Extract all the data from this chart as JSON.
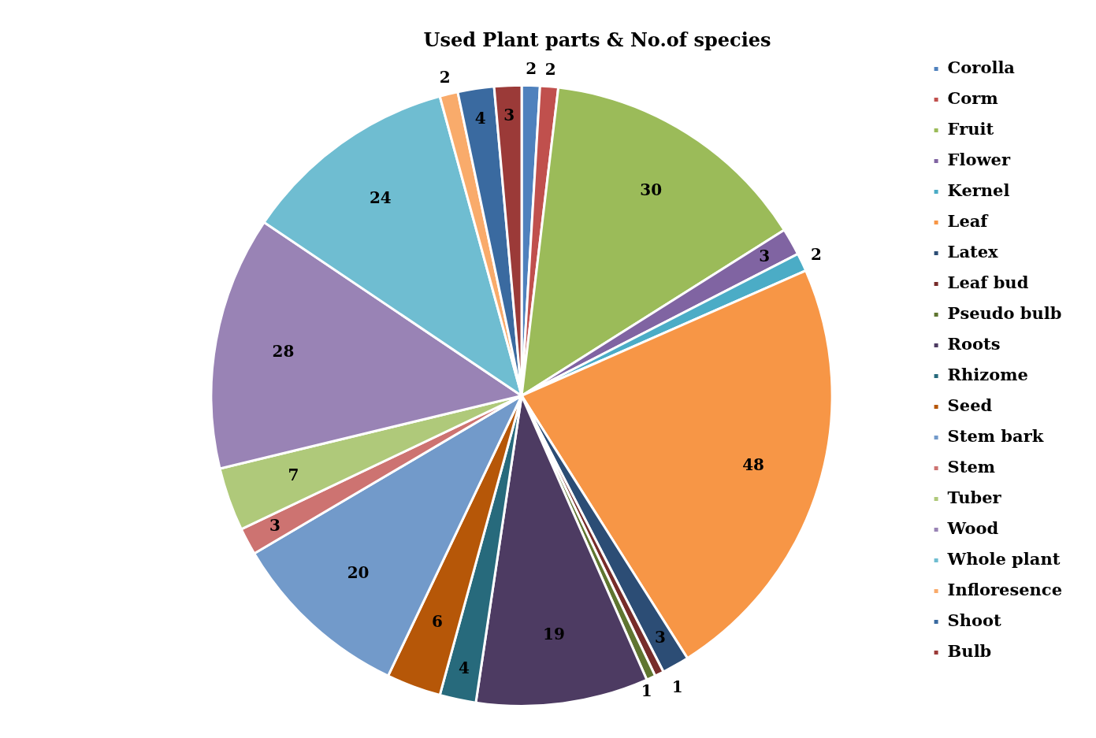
{
  "chart_data": {
    "type": "pie",
    "title": "Used Plant parts & No.of species",
    "categories": [
      "Corolla",
      "Corm",
      "Fruit",
      "Flower",
      "Kernel",
      "Leaf",
      "Latex",
      "Leaf bud",
      "Pseudo bulb",
      "Roots",
      "Rhizome",
      "Seed",
      "Stem bark",
      "Stem",
      "Tuber",
      "Wood",
      "Whole plant",
      "Infloresence",
      "Shoot",
      "Bulb"
    ],
    "values": [
      2,
      2,
      30,
      3,
      2,
      48,
      3,
      1,
      1,
      19,
      4,
      6,
      20,
      3,
      7,
      28,
      24,
      2,
      4,
      3
    ],
    "colors": [
      "#4f81bd",
      "#c0504d",
      "#9bbb59",
      "#8064a2",
      "#4bacc6",
      "#f79646",
      "#2c4d75",
      "#772c2a",
      "#5f7530",
      "#4d3b62",
      "#276a7c",
      "#b65708",
      "#729aca",
      "#cd7371",
      "#afc97a",
      "#9983b5",
      "#6fbdd1",
      "#f9ab6b",
      "#3a6aa0",
      "#9b3a38"
    ],
    "data_labels": true,
    "legend": "right"
  }
}
